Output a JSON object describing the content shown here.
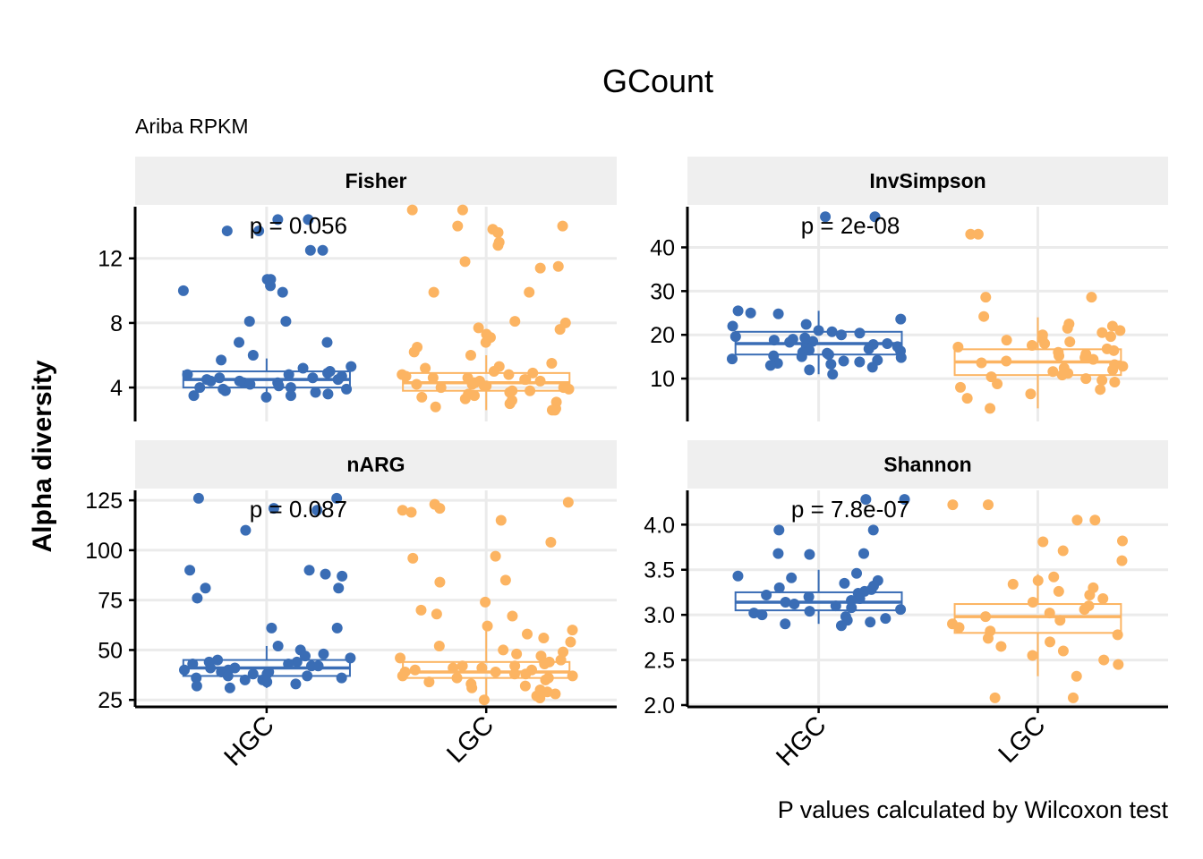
{
  "title": "GCount",
  "subtitle": "Ariba RPKM",
  "ylabel": "Alpha diversity",
  "caption": "P values calculated by Wilcoxon test",
  "colors": {
    "HGC": "#3a6db5",
    "LGC": "#fcb462",
    "strip_bg": "#efefef",
    "grid": "#ebebeb"
  },
  "chart_data": [
    {
      "type": "box+jitter",
      "panel": "Fisher",
      "categories": [
        "HGC",
        "LGC"
      ],
      "ylim": [
        1.9,
        15.2
      ],
      "yticks": [
        4,
        8,
        12
      ],
      "pvalue": "p = 0.056",
      "boxes": [
        {
          "group": "HGC",
          "q1": 4.0,
          "median": 4.5,
          "q3": 5.0,
          "whisker_low": 3.5,
          "whisker_high": 5.8
        },
        {
          "group": "LGC",
          "q1": 3.8,
          "median": 4.3,
          "q3": 4.9,
          "whisker_low": 2.6,
          "whisker_high": 6.0
        }
      ],
      "points": {
        "HGC": [
          14.4,
          14.4,
          13.7,
          13.7,
          12.5,
          12.5,
          10.7,
          10.7,
          10.3,
          10.0,
          9.9,
          8.1,
          8.1,
          6.8,
          6.8,
          6.0,
          5.7,
          5.3,
          5.2,
          5.0,
          4.9,
          4.8,
          4.8,
          4.7,
          4.6,
          4.6,
          4.5,
          4.5,
          4.4,
          4.4,
          4.3,
          4.3,
          4.2,
          4.1,
          4.0,
          4.0,
          3.9,
          3.9,
          3.8,
          3.7,
          3.6,
          3.5,
          3.5,
          3.4
        ],
        "LGC": [
          15.0,
          15.0,
          14.0,
          14.0,
          13.8,
          13.6,
          13.6,
          13.0,
          12.8,
          11.8,
          11.5,
          11.4,
          9.9,
          9.9,
          8.1,
          8.0,
          7.7,
          7.6,
          7.3,
          7.1,
          6.8,
          6.5,
          6.2,
          6.0,
          5.5,
          5.3,
          5.2,
          5.0,
          4.9,
          4.8,
          4.8,
          4.7,
          4.6,
          4.6,
          4.5,
          4.5,
          4.4,
          4.4,
          4.3,
          4.3,
          4.2,
          4.2,
          4.1,
          4.1,
          4.0,
          4.0,
          3.9,
          3.8,
          3.8,
          3.7,
          3.6,
          3.5,
          3.4,
          3.3,
          3.2,
          3.1,
          3.0,
          2.8,
          2.7,
          2.6,
          2.6
        ]
      }
    },
    {
      "type": "box+jitter",
      "panel": "InvSimpson",
      "categories": [
        "HGC",
        "LGC"
      ],
      "ylim": [
        0.2,
        49.3
      ],
      "yticks": [
        10,
        20,
        30,
        40
      ],
      "pvalue": "p = 2e-08",
      "boxes": [
        {
          "group": "HGC",
          "q1": 15.5,
          "median": 18.0,
          "q3": 20.7,
          "whisker_low": 11.0,
          "whisker_high": 25.5
        },
        {
          "group": "LGC",
          "q1": 10.8,
          "median": 13.8,
          "q3": 16.7,
          "whisker_low": 3.2,
          "whisker_high": 24.0
        }
      ],
      "points": {
        "HGC": [
          47.0,
          47.0,
          25.5,
          25.0,
          24.8,
          23.6,
          22.4,
          22.0,
          21.0,
          20.7,
          20.4,
          20.0,
          19.6,
          19.3,
          19.0,
          18.8,
          18.5,
          18.3,
          18.0,
          17.8,
          17.5,
          17.3,
          17.0,
          16.8,
          16.5,
          16.3,
          16.0,
          15.8,
          15.5,
          15.2,
          15.0,
          14.8,
          14.5,
          14.2,
          14.0,
          13.8,
          13.5,
          13.3,
          13.0,
          12.6,
          12.0,
          11.0
        ],
        "LGC": [
          43.0,
          43.0,
          28.6,
          28.6,
          24.2,
          22.5,
          22.0,
          21.5,
          21.0,
          20.5,
          20.0,
          19.6,
          19.2,
          18.8,
          18.4,
          18.0,
          17.6,
          17.2,
          16.8,
          16.4,
          16.0,
          15.6,
          15.2,
          14.8,
          14.4,
          14.0,
          13.6,
          13.2,
          12.8,
          12.4,
          12.0,
          11.6,
          11.2,
          10.8,
          10.4,
          10.0,
          9.6,
          9.2,
          8.8,
          8.0,
          7.5,
          6.5,
          5.5,
          3.2
        ]
      }
    },
    {
      "type": "box+jitter",
      "panel": "nARG",
      "categories": [
        "HGC",
        "LGC"
      ],
      "ylim": [
        21.5,
        130
      ],
      "yticks": [
        25,
        50,
        75,
        100,
        125
      ],
      "pvalue": "p = 0.087",
      "boxes": [
        {
          "group": "HGC",
          "q1": 37,
          "median": 41,
          "q3": 45,
          "whisker_low": 31,
          "whisker_high": 52
        },
        {
          "group": "LGC",
          "q1": 36,
          "median": 39,
          "q3": 44,
          "whisker_low": 25,
          "whisker_high": 60
        }
      ],
      "points": {
        "HGC": [
          126,
          126,
          121,
          120,
          110,
          90,
          90,
          88,
          87,
          81,
          81,
          76,
          61,
          61,
          52,
          50,
          48,
          47,
          46,
          45,
          44,
          44,
          43,
          43,
          42,
          42,
          41,
          41,
          40,
          40,
          39,
          39,
          38,
          38,
          37,
          37,
          36,
          36,
          35,
          35,
          34,
          33,
          32,
          31
        ],
        "LGC": [
          124,
          123,
          121,
          120,
          119,
          115,
          104,
          97,
          96,
          85,
          84,
          74,
          70,
          68,
          67,
          62,
          60,
          58,
          56,
          54,
          52,
          50,
          49,
          48,
          47,
          46,
          45,
          44,
          43,
          42,
          42,
          41,
          41,
          40,
          40,
          39,
          39,
          38,
          38,
          37,
          37,
          36,
          36,
          35,
          34,
          33,
          32,
          31,
          30,
          29,
          28,
          27,
          26,
          25
        ]
      }
    },
    {
      "type": "box+jitter",
      "panel": "Shannon",
      "categories": [
        "HGC",
        "LGC"
      ],
      "ylim": [
        1.98,
        4.38
      ],
      "yticks": [
        2.0,
        2.5,
        3.0,
        3.5,
        4.0
      ],
      "ytick_labels": [
        "2.0",
        "2.5",
        "3.0",
        "3.5",
        "4.0"
      ],
      "pvalue": "p = 7.8e-07",
      "boxes": [
        {
          "group": "HGC",
          "q1": 3.05,
          "median": 3.14,
          "q3": 3.25,
          "whisker_low": 2.9,
          "whisker_high": 3.5
        },
        {
          "group": "LGC",
          "q1": 2.8,
          "median": 2.98,
          "q3": 3.12,
          "whisker_low": 2.32,
          "whisker_high": 3.45
        }
      ],
      "points": {
        "HGC": [
          4.28,
          4.28,
          3.94,
          3.94,
          3.68,
          3.68,
          3.67,
          3.46,
          3.43,
          3.41,
          3.38,
          3.35,
          3.32,
          3.3,
          3.28,
          3.26,
          3.24,
          3.22,
          3.2,
          3.18,
          3.16,
          3.14,
          3.12,
          3.1,
          3.08,
          3.06,
          3.04,
          3.02,
          3.0,
          2.98,
          2.96,
          2.94,
          2.92,
          2.9,
          2.88
        ],
        "LGC": [
          4.22,
          4.22,
          4.05,
          4.05,
          3.82,
          3.81,
          3.71,
          3.6,
          3.42,
          3.38,
          3.34,
          3.3,
          3.26,
          3.22,
          3.18,
          3.14,
          3.1,
          3.06,
          3.02,
          2.98,
          2.94,
          2.9,
          2.86,
          2.82,
          2.78,
          2.74,
          2.7,
          2.65,
          2.6,
          2.55,
          2.5,
          2.45,
          2.32,
          2.08,
          2.08
        ]
      }
    }
  ]
}
